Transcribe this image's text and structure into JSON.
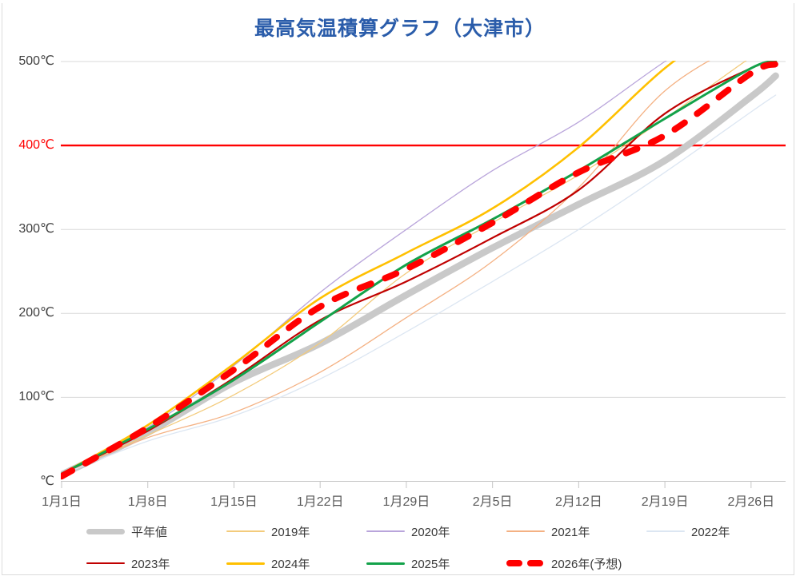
{
  "title": {
    "text": "最高気温積算グラフ（大津市）",
    "color": "#2A5CAA"
  },
  "chart_data": {
    "type": "line",
    "title": "最高気温積算グラフ（大津市）",
    "xlabel": "",
    "ylabel": "℃",
    "ylim": [
      0,
      500
    ],
    "grid": "horizontal",
    "legend_position": "bottom",
    "x_unit": "day of year (1 = 1月1日)",
    "xticks": [
      {
        "label": "1月1日",
        "day": 1
      },
      {
        "label": "1月8日",
        "day": 8
      },
      {
        "label": "1月15日",
        "day": 15
      },
      {
        "label": "1月22日",
        "day": 22
      },
      {
        "label": "1月29日",
        "day": 29
      },
      {
        "label": "2月5日",
        "day": 36
      },
      {
        "label": "2月12日",
        "day": 43
      },
      {
        "label": "2月19日",
        "day": 50
      },
      {
        "label": "2月26日",
        "day": 57
      }
    ],
    "yticks": [
      {
        "label": "500℃",
        "value": 500,
        "color": "#404040"
      },
      {
        "label": "400℃",
        "value": 400,
        "color": "#FF0000"
      },
      {
        "label": "300℃",
        "value": 300,
        "color": "#404040"
      },
      {
        "label": "200℃",
        "value": 200,
        "color": "#404040"
      },
      {
        "label": "100℃",
        "value": 100,
        "color": "#404040"
      },
      {
        "label": "℃",
        "value": 0,
        "color": "#404040"
      }
    ],
    "refline": {
      "value": 400,
      "color": "#FF0000",
      "width": 2.4
    },
    "anchor_days": [
      1,
      8,
      15,
      22,
      29,
      36,
      43,
      50,
      57,
      59
    ],
    "series": [
      {
        "name": "平年値",
        "color": "#C9C9C9",
        "width": 8.5,
        "dash": null,
        "values": [
          8,
          58,
          118,
          164,
          222,
          278,
          330,
          382,
          458,
          483
        ]
      },
      {
        "name": "2019年",
        "color": "#F3CB7C",
        "width": 1.3,
        "dash": null,
        "values": [
          9,
          55,
          103,
          165,
          248,
          308,
          365,
          432,
          505,
          518
        ]
      },
      {
        "name": "2020年",
        "color": "#B9A5DB",
        "width": 1.3,
        "dash": null,
        "values": [
          9,
          64,
          138,
          225,
          300,
          370,
          428,
          500,
          565,
          585
        ]
      },
      {
        "name": "2021年",
        "color": "#F4B183",
        "width": 1.3,
        "dash": null,
        "values": [
          9,
          52,
          82,
          130,
          195,
          262,
          350,
          465,
          528,
          542
        ]
      },
      {
        "name": "2022年",
        "color": "#DCE6F2",
        "width": 1.3,
        "dash": null,
        "values": [
          8,
          48,
          78,
          122,
          178,
          238,
          300,
          368,
          440,
          460
        ]
      },
      {
        "name": "2023年",
        "color": "#C00000",
        "width": 2.2,
        "dash": null,
        "values": [
          9,
          60,
          123,
          192,
          238,
          290,
          347,
          438,
          492,
          500
        ]
      },
      {
        "name": "2024年",
        "color": "#FFC000",
        "width": 2.6,
        "dash": null,
        "values": [
          9,
          67,
          140,
          218,
          272,
          325,
          398,
          492,
          565,
          585
        ]
      },
      {
        "name": "2025年",
        "color": "#13A24A",
        "width": 3.0,
        "dash": null,
        "values": [
          9,
          62,
          121,
          190,
          258,
          312,
          370,
          432,
          492,
          500
        ]
      },
      {
        "name": "2026年(予想)",
        "color": "#FF0000",
        "width": 8.0,
        "dash": "15 19",
        "values": [
          6,
          64,
          133,
          208,
          253,
          308,
          368,
          412,
          486,
          497
        ]
      }
    ],
    "colors": {
      "gridline": "#D9D9D9",
      "axis": "#C6C6C6",
      "refline": "#FF0000"
    }
  }
}
